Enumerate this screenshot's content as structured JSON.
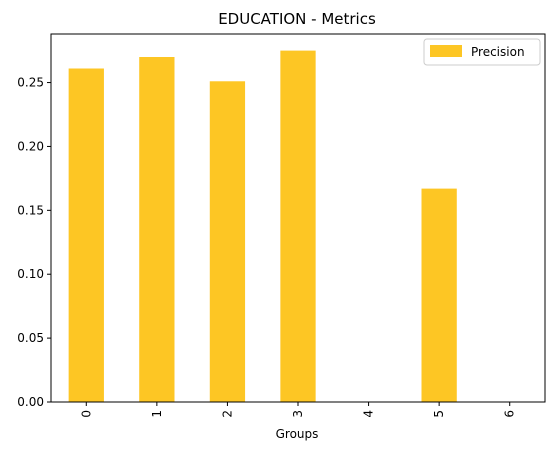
{
  "chart_data": {
    "type": "bar",
    "title": "EDUCATION - Metrics",
    "xlabel": "Groups",
    "ylabel": "",
    "categories": [
      "0",
      "1",
      "2",
      "3",
      "4",
      "5",
      "6"
    ],
    "series": [
      {
        "name": "Precision",
        "values": [
          0.261,
          0.27,
          0.251,
          0.275,
          0,
          0.167,
          0
        ],
        "color": "#FDC624"
      }
    ],
    "ylim": [
      0,
      0.288
    ],
    "yticks": [
      0.0,
      0.05,
      0.1,
      0.15,
      0.2,
      0.25
    ],
    "ytick_labels": [
      "0.00",
      "0.05",
      "0.10",
      "0.15",
      "0.20",
      "0.25"
    ],
    "grid": false,
    "legend": "top-right"
  }
}
